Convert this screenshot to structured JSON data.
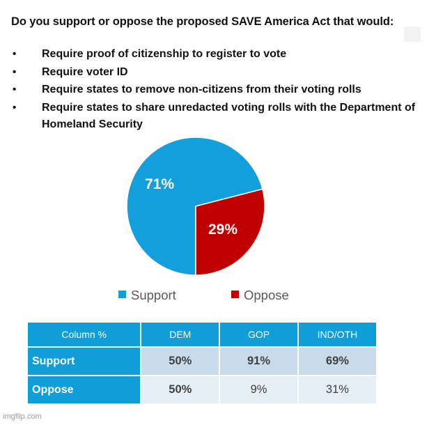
{
  "question": "Do you support or oppose the proposed SAVE America Act that would:",
  "bullets": [
    "Require proof of citizenship to register to vote",
    "Require voter ID",
    "Require states to remove non-citizens from their voting rolls",
    "Require states to share unredacted voting rolls with the Department of Homeland Security"
  ],
  "bullet_symbol": "•",
  "colors": {
    "support": "#129fdc",
    "oppose": "#c00000",
    "table_header": "#0f9ed8"
  },
  "chart_data": [
    {
      "type": "pie",
      "title": "",
      "categories": [
        "Support",
        "Oppose"
      ],
      "values": [
        71,
        29
      ],
      "labels": [
        "71%",
        "29%"
      ],
      "legend": [
        "Support",
        "Oppose"
      ],
      "legend_position": "bottom"
    },
    {
      "type": "table",
      "columns": [
        "Column %",
        "DEM",
        "GOP",
        "IND/OTH"
      ],
      "rows": [
        {
          "label": "Support",
          "values": [
            "50%",
            "91%",
            "69%"
          ]
        },
        {
          "label": "Oppose",
          "values": [
            "50%",
            "9%",
            "31%"
          ]
        }
      ]
    }
  ],
  "watermark": "imgflip.com"
}
